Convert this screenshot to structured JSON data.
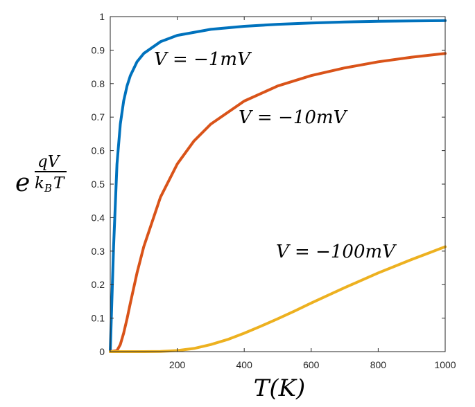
{
  "chart_data": {
    "type": "line",
    "title": "",
    "xlabel": "T(K)",
    "ylabel": {
      "base": "e",
      "numerator": "qV",
      "denominator_main": "k",
      "denominator_sub": "B",
      "denominator_tail": "T"
    },
    "xlim": [
      0,
      1000
    ],
    "ylim": [
      0,
      1
    ],
    "xticks": [
      200,
      400,
      600,
      800,
      1000
    ],
    "xtick_labels": [
      "200",
      "400",
      "600",
      "800",
      "1000"
    ],
    "yticks": [
      0,
      0.1,
      0.2,
      0.3,
      0.4,
      0.5,
      0.6,
      0.7,
      0.8,
      0.9,
      1
    ],
    "ytick_labels": [
      "0",
      "0.1",
      "0.2",
      "0.3",
      "0.4",
      "0.5",
      "0.6",
      "0.7",
      "0.8",
      "0.9",
      "1"
    ],
    "grid": false,
    "series": [
      {
        "name": "V = −1mV",
        "voltage_mV": -1,
        "color": "#0072BD",
        "x": [
          0,
          10,
          20,
          30,
          40,
          50,
          60,
          80,
          100,
          150,
          200,
          300,
          400,
          500,
          600,
          700,
          800,
          900,
          1000
        ],
        "y": [
          0,
          0.313,
          0.56,
          0.679,
          0.748,
          0.793,
          0.824,
          0.865,
          0.89,
          0.925,
          0.944,
          0.962,
          0.971,
          0.977,
          0.981,
          0.984,
          0.986,
          0.987,
          0.988
        ]
      },
      {
        "name": "V = −10mV",
        "voltage_mV": -10,
        "color": "#D95319",
        "x": [
          0,
          20,
          30,
          40,
          50,
          60,
          80,
          100,
          150,
          200,
          250,
          300,
          400,
          500,
          600,
          700,
          800,
          900,
          1000
        ],
        "y": [
          0,
          0.003,
          0.021,
          0.055,
          0.098,
          0.145,
          0.235,
          0.313,
          0.461,
          0.56,
          0.629,
          0.679,
          0.748,
          0.793,
          0.824,
          0.847,
          0.865,
          0.879,
          0.89
        ]
      },
      {
        "name": "V = −100mV",
        "voltage_mV": -100,
        "color": "#EDB120",
        "x": [
          0,
          100,
          150,
          200,
          250,
          300,
          350,
          400,
          450,
          500,
          550,
          600,
          650,
          700,
          750,
          800,
          850,
          900,
          950,
          1000
        ],
        "y": [
          0,
          1e-05,
          0.0004,
          0.003,
          0.0096,
          0.021,
          0.036,
          0.055,
          0.076,
          0.098,
          0.121,
          0.145,
          0.168,
          0.191,
          0.213,
          0.235,
          0.255,
          0.275,
          0.294,
          0.313
        ]
      }
    ],
    "annotations": [
      {
        "text": "V = −1mV",
        "series": 0
      },
      {
        "text": "V = −10mV",
        "series": 1
      },
      {
        "text": "V = −100mV",
        "series": 2
      }
    ]
  }
}
